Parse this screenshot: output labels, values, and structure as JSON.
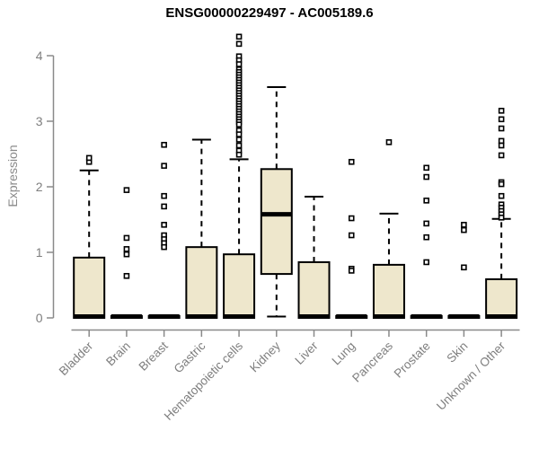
{
  "title": "ENSG00000229497 - AC005189.6",
  "colors": {
    "background": "#ffffff",
    "axis": "#8a8a8a",
    "tick_text": "#7e7e7e",
    "title_text": "#000000",
    "box_fill": "#eee7cc",
    "box_border": "#000000",
    "outlier_fill": "#ffffff"
  },
  "chart_data": {
    "type": "boxplot",
    "title": "ENSG00000229497 - AC005189.6",
    "ylabel": "Expression",
    "xlabel": "",
    "ylim": [
      0,
      4.35
    ],
    "yticks": [
      0,
      1,
      2,
      3,
      4
    ],
    "grid": false,
    "legend": "none",
    "categories": [
      "Bladder",
      "Brain",
      "Breast",
      "Gastric",
      "Hematopoietic cells",
      "Kidney",
      "Liver",
      "Lung",
      "Pancreas",
      "Prostate",
      "Skin",
      "Unknown / Other"
    ],
    "series": [
      {
        "name": "Bladder",
        "q1": 0,
        "median": 0.02,
        "q3": 0.92,
        "whisker_low": 0,
        "whisker_high": 2.25,
        "outliers": [
          2.38,
          2.44
        ]
      },
      {
        "name": "Brain",
        "q1": 0,
        "median": 0.02,
        "q3": 0.03,
        "whisker_low": 0,
        "whisker_high": 0.03,
        "outliers": [
          1.95,
          1.22,
          1.05,
          0.97,
          0.64
        ]
      },
      {
        "name": "Breast",
        "q1": 0,
        "median": 0.02,
        "q3": 0.03,
        "whisker_low": 0,
        "whisker_high": 0.03,
        "outliers": [
          2.64,
          2.32,
          1.86,
          1.7,
          1.42,
          1.26,
          1.2,
          1.14,
          1.08
        ]
      },
      {
        "name": "Gastric",
        "q1": 0,
        "median": 0.02,
        "q3": 1.08,
        "whisker_low": 0,
        "whisker_high": 2.72,
        "outliers": []
      },
      {
        "name": "Hematopoietic cells",
        "q1": 0,
        "median": 0.02,
        "q3": 0.97,
        "whisker_low": 0,
        "whisker_high": 2.42,
        "outliers": [
          4.29,
          4.18,
          3.99,
          3.93,
          3.87,
          3.79,
          3.75,
          3.71,
          3.67,
          3.63,
          3.59,
          3.55,
          3.51,
          3.47,
          3.43,
          3.39,
          3.35,
          3.31,
          3.27,
          3.23,
          3.19,
          3.15,
          3.11,
          3.07,
          3.03,
          2.99,
          2.95,
          2.86,
          2.8,
          2.72,
          2.63,
          2.55,
          2.49
        ]
      },
      {
        "name": "Kidney",
        "q1": 0.67,
        "median": 1.58,
        "q3": 2.27,
        "whisker_low": 0.02,
        "whisker_high": 3.52,
        "outliers": []
      },
      {
        "name": "Liver",
        "q1": 0,
        "median": 0.02,
        "q3": 0.85,
        "whisker_low": 0,
        "whisker_high": 1.85,
        "outliers": []
      },
      {
        "name": "Lung",
        "q1": 0,
        "median": 0.02,
        "q3": 0.03,
        "whisker_low": 0,
        "whisker_high": 0.03,
        "outliers": [
          2.38,
          1.52,
          1.26,
          0.75,
          0.72
        ]
      },
      {
        "name": "Pancreas",
        "q1": 0,
        "median": 0.02,
        "q3": 0.81,
        "whisker_low": 0,
        "whisker_high": 1.59,
        "outliers": [
          2.68
        ]
      },
      {
        "name": "Prostate",
        "q1": 0,
        "median": 0.02,
        "q3": 0.03,
        "whisker_low": 0,
        "whisker_high": 0.03,
        "outliers": [
          2.29,
          2.15,
          1.79,
          1.44,
          1.23,
          0.85
        ]
      },
      {
        "name": "Skin",
        "q1": 0,
        "median": 0.02,
        "q3": 0.03,
        "whisker_low": 0,
        "whisker_high": 0.03,
        "outliers": [
          1.42,
          1.34,
          0.77
        ]
      },
      {
        "name": "Unknown / Other",
        "q1": 0,
        "median": 0.02,
        "q3": 0.59,
        "whisker_low": 0,
        "whisker_high": 1.51,
        "outliers": [
          3.16,
          3.03,
          2.89,
          2.7,
          2.63,
          2.48,
          2.07,
          2.04,
          1.86,
          1.73,
          1.68,
          1.63,
          1.58,
          1.53
        ]
      }
    ]
  }
}
